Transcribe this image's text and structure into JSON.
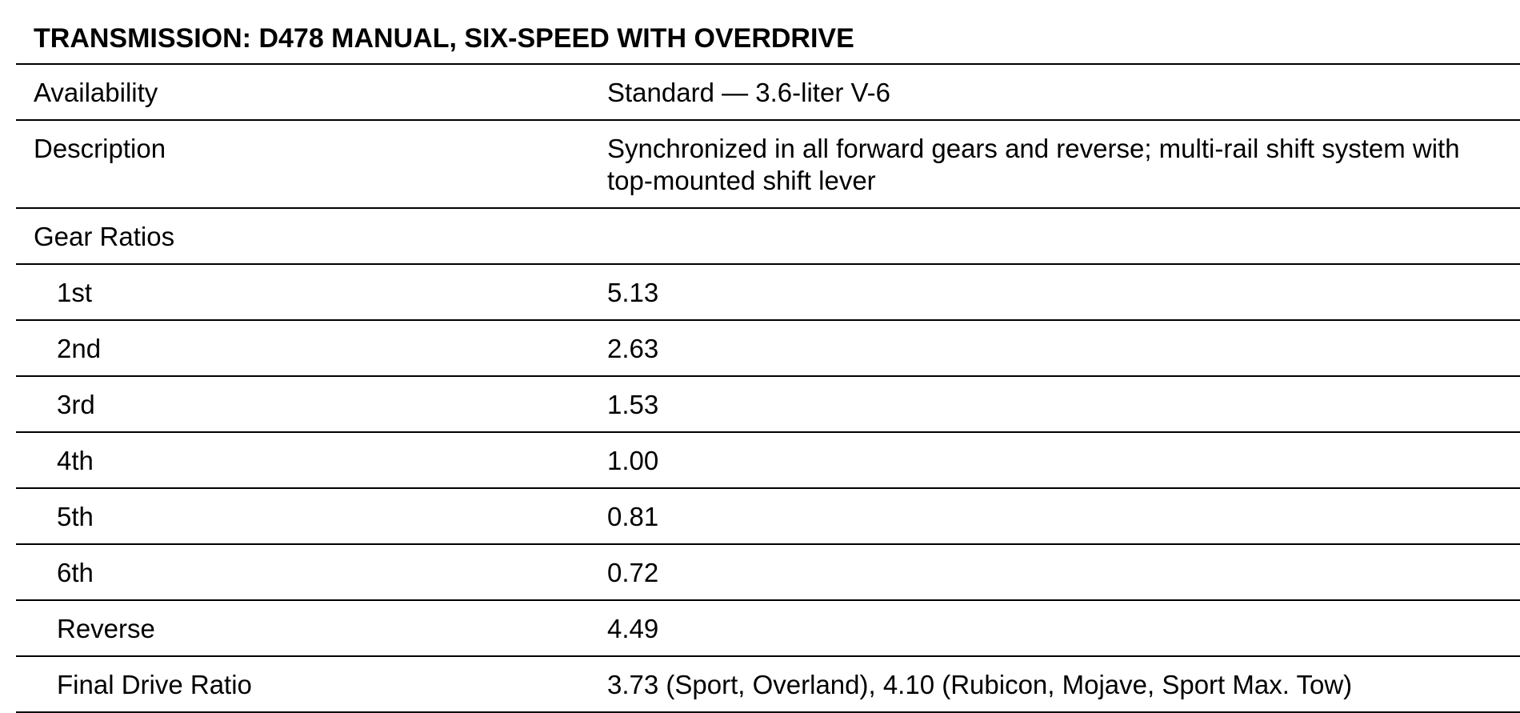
{
  "title": "TRANSMISSION: D478 MANUAL, SIX-SPEED WITH OVERDRIVE",
  "rows": [
    {
      "label": "Availability",
      "value": "Standard — 3.6-liter V-6"
    },
    {
      "label": "Description",
      "value": "Synchronized in all forward gears and reverse; multi-rail shift system with top-mounted shift lever"
    },
    {
      "label": "Gear Ratios",
      "value": ""
    },
    {
      "label": "1st",
      "value": "5.13"
    },
    {
      "label": "2nd",
      "value": "2.63"
    },
    {
      "label": "3rd",
      "value": "1.53"
    },
    {
      "label": "4th",
      "value": "1.00"
    },
    {
      "label": "5th",
      "value": "0.81"
    },
    {
      "label": "6th",
      "value": "0.72"
    },
    {
      "label": "Reverse",
      "value": "4.49"
    },
    {
      "label": "Final Drive Ratio",
      "value": "3.73 (Sport, Overland), 4.10 (Rubicon, Mojave, Sport Max. Tow)"
    }
  ]
}
